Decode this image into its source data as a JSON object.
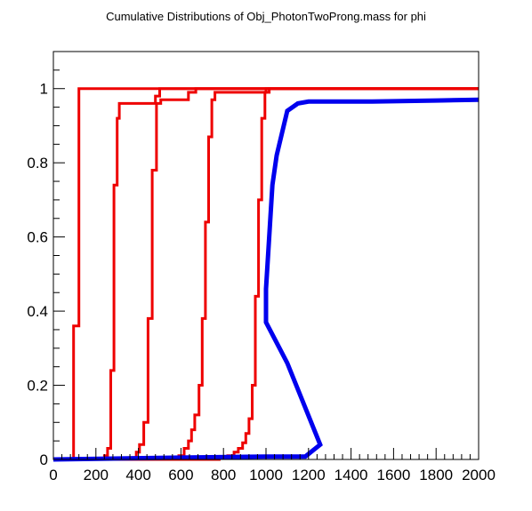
{
  "chart_data": {
    "type": "line",
    "title": "Cumulative Distributions of Obj_PhotonTwoProng.mass for phi",
    "xlabel": "",
    "ylabel": "",
    "xlim": [
      0,
      2000
    ],
    "ylim": [
      0,
      1.1
    ],
    "grid": false,
    "xticks": [
      "0",
      "200",
      "400",
      "600",
      "800",
      "1000",
      "1200",
      "1400",
      "1600",
      "1800",
      "2000"
    ],
    "yticks": [
      "0",
      "0.2",
      "0.4",
      "0.6",
      "0.8",
      "1"
    ],
    "colors": {
      "red": "#ee0000",
      "blue": "#0000ee"
    },
    "series": [
      {
        "color": "red",
        "style": "step",
        "points": [
          [
            0,
            0
          ],
          [
            95,
            0
          ],
          [
            95,
            0.36
          ],
          [
            120,
            0.36
          ],
          [
            120,
            1.0
          ],
          [
            2000,
            1.0
          ]
        ]
      },
      {
        "color": "red",
        "style": "step",
        "points": [
          [
            0,
            0
          ],
          [
            240,
            0
          ],
          [
            240,
            0.01
          ],
          [
            255,
            0.01
          ],
          [
            255,
            0.03
          ],
          [
            270,
            0.03
          ],
          [
            270,
            0.24
          ],
          [
            285,
            0.24
          ],
          [
            285,
            0.74
          ],
          [
            300,
            0.74
          ],
          [
            300,
            0.92
          ],
          [
            310,
            0.92
          ],
          [
            310,
            0.96
          ],
          [
            480,
            0.96
          ],
          [
            480,
            0.98
          ],
          [
            500,
            0.98
          ],
          [
            500,
            1.0
          ],
          [
            2000,
            1.0
          ]
        ]
      },
      {
        "color": "red",
        "style": "step",
        "points": [
          [
            0,
            0
          ],
          [
            360,
            0
          ],
          [
            360,
            0.005
          ],
          [
            390,
            0.005
          ],
          [
            390,
            0.02
          ],
          [
            405,
            0.02
          ],
          [
            405,
            0.04
          ],
          [
            425,
            0.04
          ],
          [
            425,
            0.1
          ],
          [
            445,
            0.1
          ],
          [
            445,
            0.38
          ],
          [
            465,
            0.38
          ],
          [
            465,
            0.78
          ],
          [
            485,
            0.78
          ],
          [
            485,
            0.96
          ],
          [
            505,
            0.96
          ],
          [
            505,
            0.97
          ],
          [
            635,
            0.97
          ],
          [
            635,
            0.99
          ],
          [
            670,
            0.99
          ],
          [
            670,
            1.0
          ],
          [
            2000,
            1.0
          ]
        ]
      },
      {
        "color": "red",
        "style": "step",
        "points": [
          [
            0,
            0
          ],
          [
            560,
            0
          ],
          [
            560,
            0.003
          ],
          [
            590,
            0.003
          ],
          [
            590,
            0.01
          ],
          [
            615,
            0.01
          ],
          [
            615,
            0.03
          ],
          [
            635,
            0.03
          ],
          [
            635,
            0.05
          ],
          [
            650,
            0.05
          ],
          [
            650,
            0.08
          ],
          [
            665,
            0.08
          ],
          [
            665,
            0.12
          ],
          [
            685,
            0.12
          ],
          [
            685,
            0.2
          ],
          [
            700,
            0.2
          ],
          [
            700,
            0.38
          ],
          [
            715,
            0.38
          ],
          [
            715,
            0.64
          ],
          [
            730,
            0.64
          ],
          [
            730,
            0.87
          ],
          [
            745,
            0.87
          ],
          [
            745,
            0.97
          ],
          [
            760,
            0.97
          ],
          [
            760,
            0.99
          ],
          [
            1000,
            0.99
          ],
          [
            1000,
            1.0
          ],
          [
            2000,
            1.0
          ]
        ]
      },
      {
        "color": "red",
        "style": "step",
        "points": [
          [
            0,
            0
          ],
          [
            780,
            0
          ],
          [
            780,
            0.004
          ],
          [
            820,
            0.004
          ],
          [
            820,
            0.01
          ],
          [
            850,
            0.01
          ],
          [
            850,
            0.02
          ],
          [
            870,
            0.02
          ],
          [
            870,
            0.03
          ],
          [
            890,
            0.03
          ],
          [
            890,
            0.045
          ],
          [
            905,
            0.045
          ],
          [
            905,
            0.07
          ],
          [
            920,
            0.07
          ],
          [
            920,
            0.11
          ],
          [
            935,
            0.11
          ],
          [
            935,
            0.2
          ],
          [
            950,
            0.2
          ],
          [
            950,
            0.44
          ],
          [
            965,
            0.44
          ],
          [
            965,
            0.7
          ],
          [
            980,
            0.7
          ],
          [
            980,
            0.92
          ],
          [
            995,
            0.92
          ],
          [
            995,
            0.99
          ],
          [
            1015,
            0.99
          ],
          [
            1015,
            1.0
          ],
          [
            2000,
            1.0
          ]
        ]
      },
      {
        "color": "blue",
        "style": "line",
        "points": [
          [
            0,
            0
          ],
          [
            600,
            0.005
          ],
          [
            1000,
            0.008
          ],
          [
            1185,
            0.008
          ],
          [
            1255,
            0.04
          ],
          [
            1100,
            0.26
          ],
          [
            1000,
            0.37
          ],
          [
            1000,
            0.46
          ],
          [
            1030,
            0.74
          ],
          [
            1050,
            0.82
          ],
          [
            1100,
            0.94
          ],
          [
            1150,
            0.96
          ],
          [
            1200,
            0.965
          ],
          [
            1500,
            0.965
          ],
          [
            1800,
            0.968
          ],
          [
            2000,
            0.97
          ]
        ]
      }
    ]
  }
}
